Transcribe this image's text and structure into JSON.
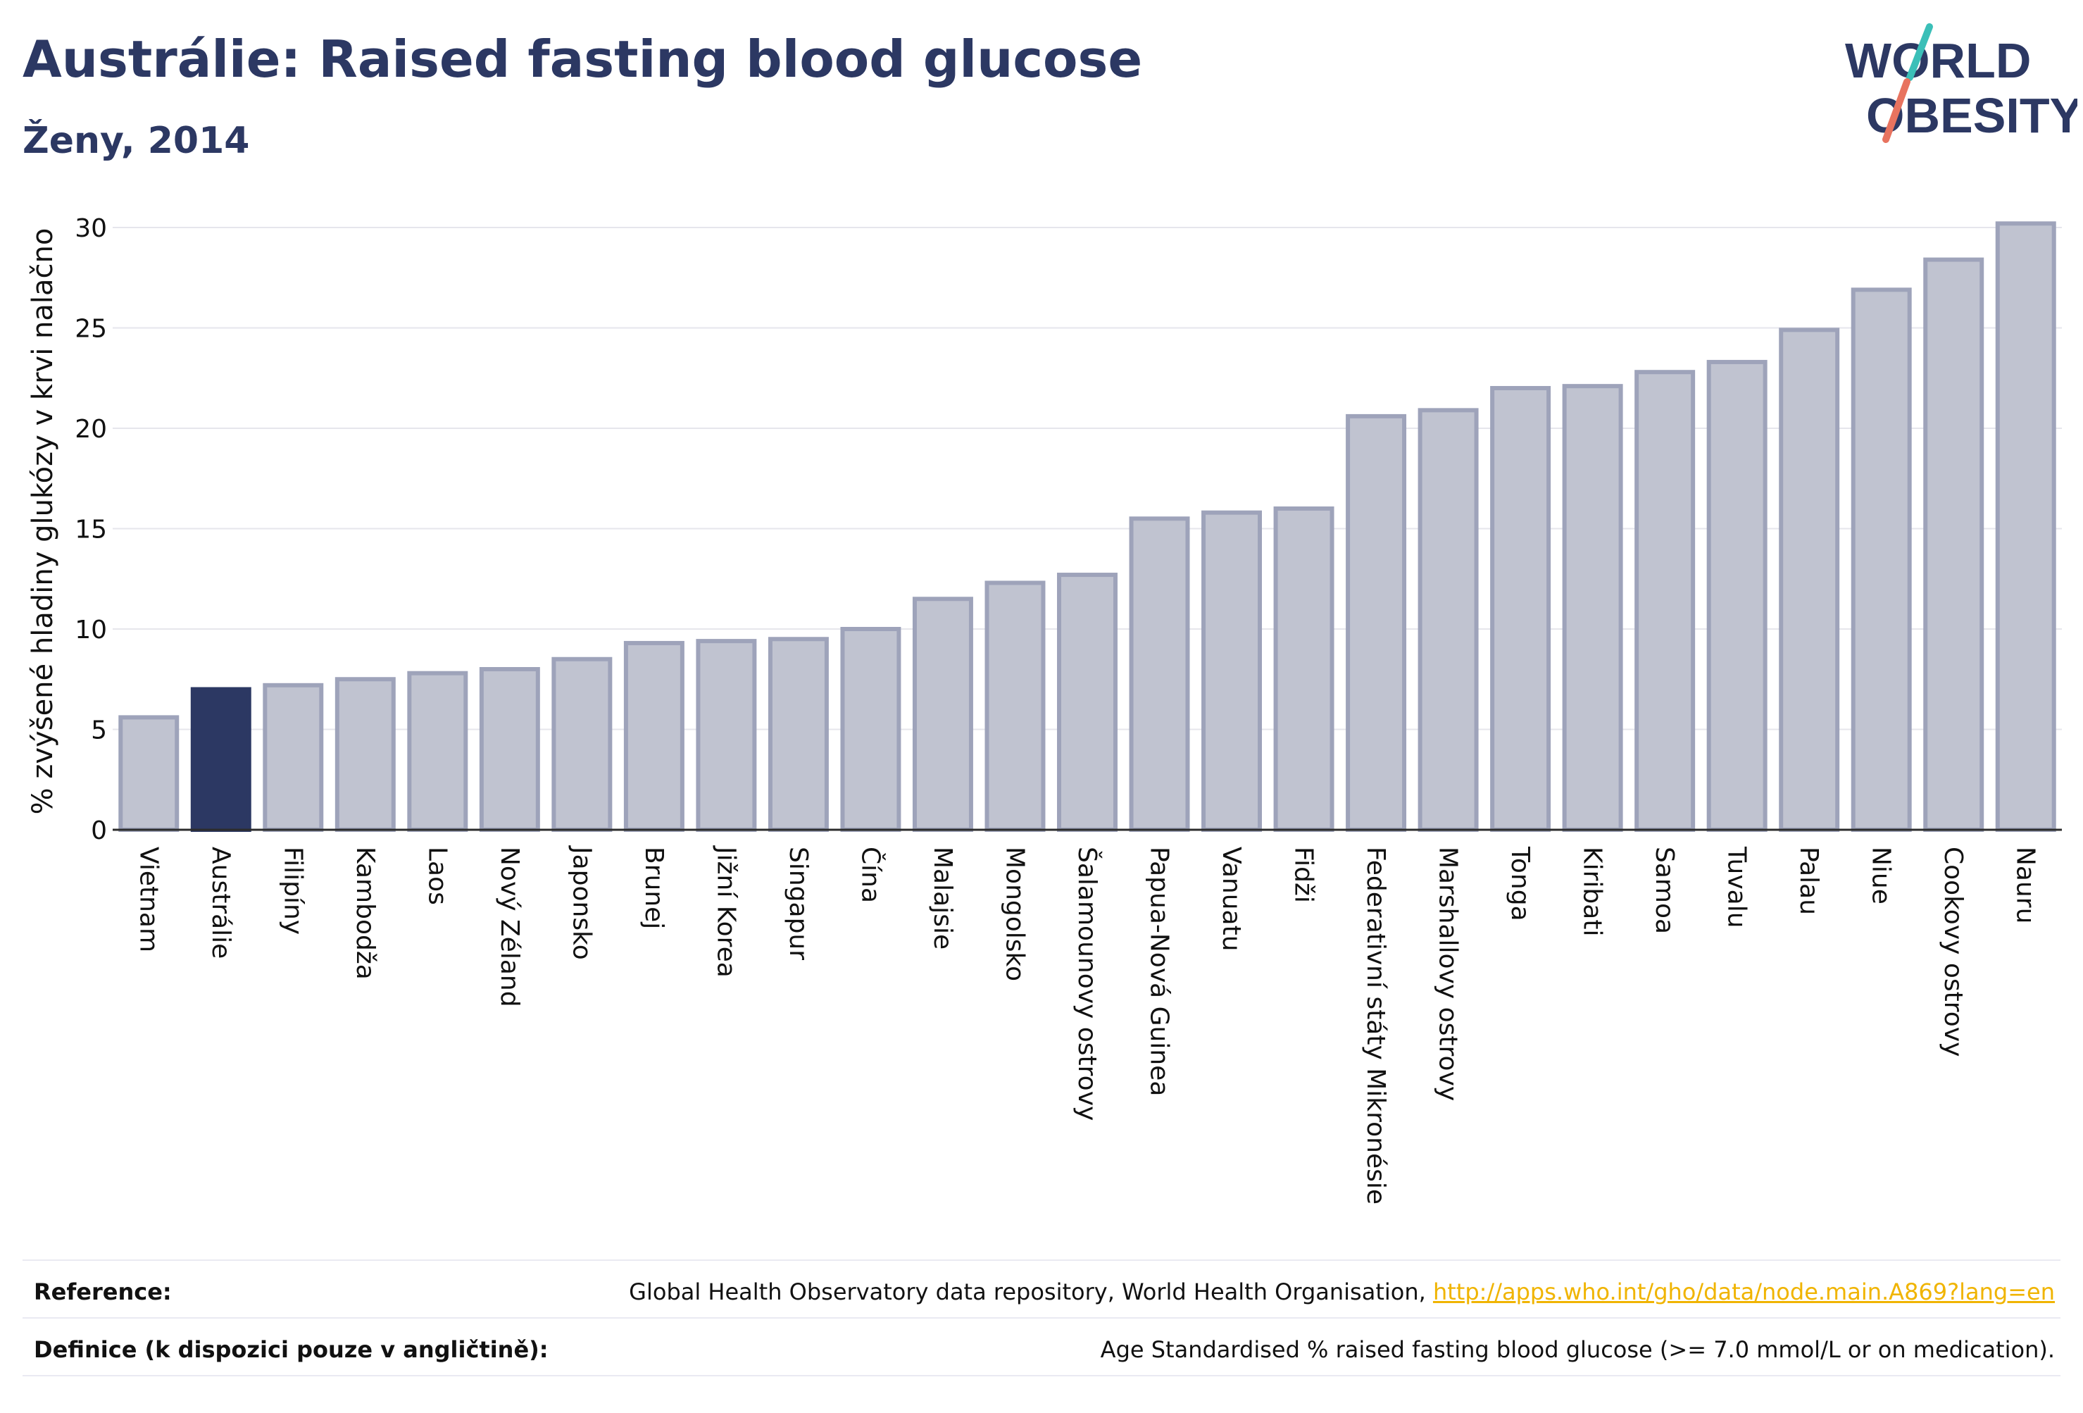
{
  "header": {
    "title": "Austrálie: Raised fasting blood glucose",
    "subtitle": "Ženy, 2014",
    "logo_line1": "WORLD",
    "logo_line2": "OBESITY"
  },
  "footer": {
    "reference_label": "Reference:",
    "reference_text": "Global Health Observatory data repository, World Health Organisation, ",
    "reference_link": "http://apps.who.int/gho/data/node.main.A869?lang=en",
    "definition_label": "Definice (k dispozici pouze v angličtině):",
    "definition_text": "Age Standardised % raised fasting blood glucose (>= 7.0 mmol/L or on medication)."
  },
  "colors": {
    "highlight": "#2c3863",
    "bar_fill": "#c0c3d0",
    "bar_stroke": "#9ea3ba",
    "grid": "#e6e6ec",
    "logo_teal": "#3bbfb8",
    "logo_coral": "#e8735f"
  },
  "chart_data": {
    "type": "bar",
    "ylabel": "% zvýšené hladiny glukózy v krvi nalačno",
    "ylim": [
      0,
      31.5
    ],
    "yticks": [
      0,
      5,
      10,
      15,
      20,
      25,
      30
    ],
    "grid": true,
    "highlight_category": "Austrálie",
    "categories": [
      "Vietnam",
      "Austrálie",
      "Filipíny",
      "Kambodža",
      "Laos",
      "Nový Zéland",
      "Japonsko",
      "Brunej",
      "Jižní Korea",
      "Singapur",
      "Čína",
      "Malajsie",
      "Mongolsko",
      "Šalamounovy ostrovy",
      "Papua-Nová Guinea",
      "Vanuatu",
      "Fidži",
      "Federativní státy Mikronésie",
      "Marshallovy ostrovy",
      "Tonga",
      "Kiribati",
      "Samoa",
      "Tuvalu",
      "Palau",
      "Niue",
      "Cookovy ostrovy",
      "Nauru"
    ],
    "values": [
      5.6,
      7.0,
      7.2,
      7.5,
      7.8,
      8.0,
      8.5,
      9.3,
      9.4,
      9.5,
      10.0,
      11.5,
      12.3,
      12.7,
      15.5,
      15.8,
      16.0,
      20.6,
      20.9,
      22.0,
      22.1,
      22.8,
      23.3,
      24.9,
      26.9,
      28.4,
      30.2
    ]
  }
}
